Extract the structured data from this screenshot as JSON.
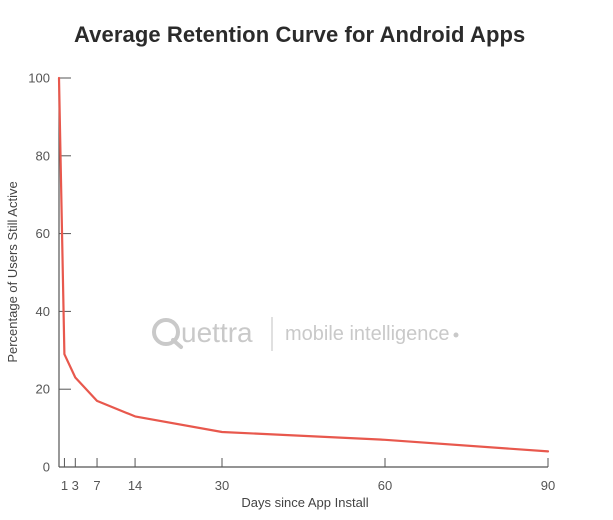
{
  "chart_data": {
    "type": "line",
    "title": "Average Retention Curve for Android Apps",
    "xlabel": "Days since App Install",
    "ylabel": "Percentage of Users Still Active",
    "xlim": [
      0,
      90
    ],
    "ylim": [
      0,
      100
    ],
    "x_ticks": [
      1,
      3,
      7,
      14,
      30,
      60,
      90
    ],
    "y_ticks": [
      0,
      20,
      40,
      60,
      80,
      100
    ],
    "grid": false,
    "series": [
      {
        "color": "#e8584d",
        "x": [
          0,
          1,
          3,
          7,
          14,
          30,
          60,
          90
        ],
        "y": [
          100,
          29,
          23,
          17,
          13,
          9,
          7,
          4
        ]
      }
    ]
  },
  "watermark": {
    "brand": "Quettra",
    "tagline": "mobile intelligence"
  },
  "colors": {
    "line": "#e8584d",
    "axis": "#555555",
    "title": "#2b2b2b",
    "watermark": "#c9c9c9"
  }
}
